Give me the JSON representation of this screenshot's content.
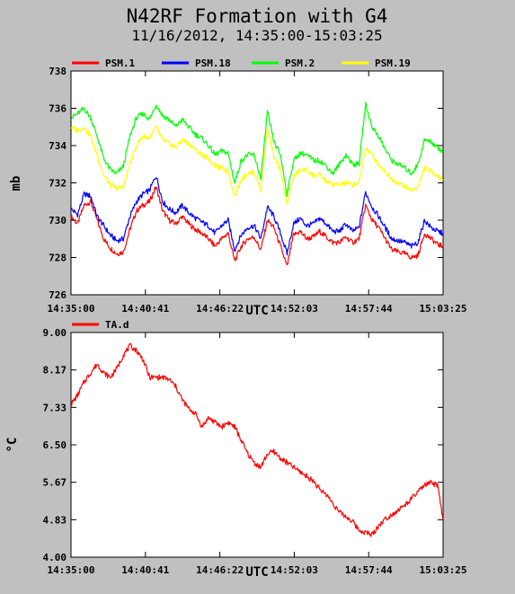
{
  "header": {
    "title": "N42RF Formation with G4",
    "subtitle": "11/16/2012, 14:35:00-15:03:25"
  },
  "chart_data": [
    {
      "type": "line",
      "ylabel": "mb",
      "xlabel": "UTC",
      "x_ticks": [
        "14:35:00",
        "14:40:41",
        "14:46:22",
        "14:52:03",
        "14:57:44",
        "15:03:25"
      ],
      "y_ticks": [
        "726",
        "728",
        "730",
        "732",
        "734",
        "736",
        "738"
      ],
      "ylim": [
        726,
        738
      ],
      "xlim_minutes": [
        0,
        28.42
      ],
      "grid": false,
      "legend_placement": "top",
      "series": [
        {
          "name": "PSM.1",
          "color": "#ff0000",
          "x": [
            0,
            0.5,
            1,
            1.5,
            2,
            2.5,
            3,
            3.5,
            4,
            4.5,
            5,
            5.5,
            6,
            6.5,
            7,
            7.5,
            8,
            8.5,
            9,
            9.5,
            10,
            10.5,
            11,
            11.5,
            12,
            12.5,
            13,
            13.5,
            14,
            14.5,
            15,
            15.5,
            16,
            16.5,
            17,
            17.5,
            18,
            18.5,
            19,
            19.5,
            20,
            20.5,
            21,
            21.5,
            22,
            22.5,
            23,
            23.5,
            24,
            24.5,
            25,
            25.5,
            26,
            26.5,
            27,
            27.5,
            28,
            28.4
          ],
          "values": [
            730.2,
            729.8,
            730.8,
            731.0,
            730.0,
            729.0,
            728.5,
            728.2,
            728.3,
            729.5,
            730.5,
            730.8,
            731.0,
            731.8,
            730.5,
            730.0,
            729.8,
            730.2,
            729.8,
            729.5,
            729.3,
            729.0,
            728.6,
            729.0,
            729.3,
            727.8,
            728.6,
            729.0,
            729.1,
            728.4,
            730.0,
            729.6,
            728.6,
            727.5,
            729.2,
            729.4,
            729.0,
            729.1,
            729.4,
            729.1,
            728.8,
            728.8,
            729.1,
            728.8,
            729.0,
            730.8,
            730.0,
            729.6,
            729.0,
            728.4,
            728.3,
            728.2,
            728.0,
            728.1,
            729.3,
            729.0,
            728.7,
            728.6
          ]
        },
        {
          "name": "PSM.18",
          "color": "#0000ff",
          "x": [
            0,
            0.5,
            1,
            1.5,
            2,
            2.5,
            3,
            3.5,
            4,
            4.5,
            5,
            5.5,
            6,
            6.5,
            7,
            7.5,
            8,
            8.5,
            9,
            9.5,
            10,
            10.5,
            11,
            11.5,
            12,
            12.5,
            13,
            13.5,
            14,
            14.5,
            15,
            15.5,
            16,
            16.5,
            17,
            17.5,
            18,
            18.5,
            19,
            19.5,
            20,
            20.5,
            21,
            21.5,
            22,
            22.5,
            23,
            23.5,
            24,
            24.5,
            25,
            25.5,
            26,
            26.5,
            27,
            27.5,
            28,
            28.4
          ],
          "values": [
            730.6,
            730.3,
            731.4,
            731.3,
            730.2,
            729.7,
            729.2,
            728.9,
            729.0,
            730.2,
            731.0,
            731.4,
            731.6,
            732.4,
            731.0,
            730.6,
            730.4,
            730.8,
            730.4,
            730.1,
            729.9,
            729.7,
            729.3,
            729.7,
            730.0,
            728.4,
            729.2,
            729.6,
            729.7,
            729.0,
            730.7,
            730.2,
            729.3,
            728.2,
            729.8,
            730.1,
            729.7,
            729.8,
            730.1,
            729.8,
            729.4,
            729.4,
            729.8,
            729.4,
            729.6,
            731.5,
            730.7,
            730.2,
            729.6,
            729.0,
            728.9,
            728.8,
            728.6,
            728.8,
            730.0,
            729.6,
            729.4,
            729.3
          ]
        },
        {
          "name": "PSM.2",
          "color": "#00ff00",
          "x": [
            0,
            0.5,
            1,
            1.5,
            2,
            2.5,
            3,
            3.5,
            4,
            4.5,
            5,
            5.5,
            6,
            6.5,
            7,
            7.5,
            8,
            8.5,
            9,
            9.5,
            10,
            10.5,
            11,
            11.5,
            12,
            12.5,
            13,
            13.5,
            14,
            14.5,
            15,
            15.5,
            16,
            16.5,
            17,
            17.5,
            18,
            18.5,
            19,
            19.5,
            20,
            20.5,
            21,
            21.5,
            22,
            22.5,
            23,
            23.5,
            24,
            24.5,
            25,
            25.5,
            26,
            26.5,
            27,
            27.5,
            28,
            28.4
          ],
          "values": [
            735.5,
            735.7,
            736.0,
            735.5,
            734.5,
            733.3,
            732.7,
            732.5,
            732.9,
            734.5,
            735.5,
            735.7,
            735.4,
            736.2,
            735.6,
            735.4,
            735.0,
            735.4,
            735.0,
            734.6,
            734.4,
            734.0,
            733.5,
            733.7,
            733.6,
            732.0,
            733.2,
            733.5,
            733.5,
            732.2,
            735.8,
            734.2,
            733.5,
            731.4,
            733.2,
            733.6,
            733.5,
            733.2,
            733.2,
            732.9,
            732.5,
            733.0,
            733.5,
            733.0,
            733.0,
            736.2,
            735.0,
            734.5,
            733.8,
            733.2,
            733.0,
            732.8,
            732.5,
            733.0,
            734.3,
            734.2,
            733.9,
            733.7
          ]
        },
        {
          "name": "PSM.19",
          "color": "#ffff00",
          "x": [
            0,
            0.5,
            1,
            1.5,
            2,
            2.5,
            3,
            3.5,
            4,
            4.5,
            5,
            5.5,
            6,
            6.5,
            7,
            7.5,
            8,
            8.5,
            9,
            9.5,
            10,
            10.5,
            11,
            11.5,
            12,
            12.5,
            13,
            13.5,
            14,
            14.5,
            15,
            15.5,
            16,
            16.5,
            17,
            17.5,
            18,
            18.5,
            19,
            19.5,
            20,
            20.5,
            21,
            21.5,
            22,
            22.5,
            23,
            23.5,
            24,
            24.5,
            25,
            25.5,
            26,
            26.5,
            27,
            27.5,
            28,
            28.4
          ],
          "values": [
            735.0,
            734.8,
            735.0,
            734.5,
            733.5,
            732.4,
            731.9,
            731.7,
            731.8,
            733.0,
            734.0,
            734.5,
            734.4,
            735.0,
            734.3,
            734.1,
            733.9,
            734.3,
            734.1,
            733.8,
            733.5,
            733.3,
            732.9,
            732.8,
            732.6,
            731.3,
            732.2,
            732.5,
            732.6,
            731.6,
            735.0,
            733.4,
            732.6,
            730.9,
            732.3,
            732.7,
            732.7,
            732.4,
            732.4,
            732.1,
            731.9,
            731.9,
            732.0,
            731.9,
            732.0,
            733.9,
            733.5,
            733.0,
            732.6,
            732.2,
            732.0,
            731.8,
            731.6,
            731.8,
            732.8,
            732.6,
            732.4,
            732.2
          ]
        }
      ]
    },
    {
      "type": "line",
      "ylabel": "°C",
      "xlabel": "UTC",
      "x_ticks": [
        "14:35:00",
        "14:40:41",
        "14:46:22",
        "14:52:03",
        "14:57:44",
        "15:03:25"
      ],
      "y_ticks": [
        "4.00",
        "4.83",
        "5.67",
        "6.50",
        "7.33",
        "8.17",
        "9.00"
      ],
      "ylim": [
        4.0,
        9.0
      ],
      "xlim_minutes": [
        0,
        28.42
      ],
      "grid": false,
      "legend_placement": "top",
      "series": [
        {
          "name": "TA.d",
          "color": "#ff0000",
          "x": [
            0,
            0.5,
            1,
            1.5,
            2,
            2.5,
            3,
            3.5,
            4,
            4.5,
            5,
            5.5,
            6,
            6.5,
            7,
            7.5,
            8,
            8.5,
            9,
            9.5,
            10,
            10.5,
            11,
            11.5,
            12,
            12.5,
            13,
            13.5,
            14,
            14.5,
            15,
            15.5,
            16,
            16.5,
            17,
            17.5,
            18,
            18.5,
            19,
            19.5,
            20,
            20.5,
            21,
            21.5,
            22,
            22.5,
            23,
            23.5,
            24,
            24.5,
            25,
            25.5,
            26,
            26.5,
            27,
            27.5,
            28,
            28.4
          ],
          "values": [
            7.4,
            7.6,
            7.9,
            8.1,
            8.3,
            8.1,
            8.0,
            8.2,
            8.5,
            8.7,
            8.6,
            8.4,
            8.0,
            8.0,
            8.0,
            7.95,
            7.8,
            7.5,
            7.3,
            7.2,
            6.9,
            7.1,
            7.0,
            6.9,
            7.0,
            6.9,
            6.6,
            6.3,
            6.1,
            6.0,
            6.3,
            6.35,
            6.2,
            6.1,
            6.0,
            5.9,
            5.8,
            5.7,
            5.5,
            5.4,
            5.2,
            5.0,
            4.9,
            4.8,
            4.6,
            4.55,
            4.5,
            4.7,
            4.85,
            4.95,
            5.05,
            5.15,
            5.3,
            5.45,
            5.6,
            5.65,
            5.6,
            4.85
          ]
        }
      ]
    }
  ]
}
